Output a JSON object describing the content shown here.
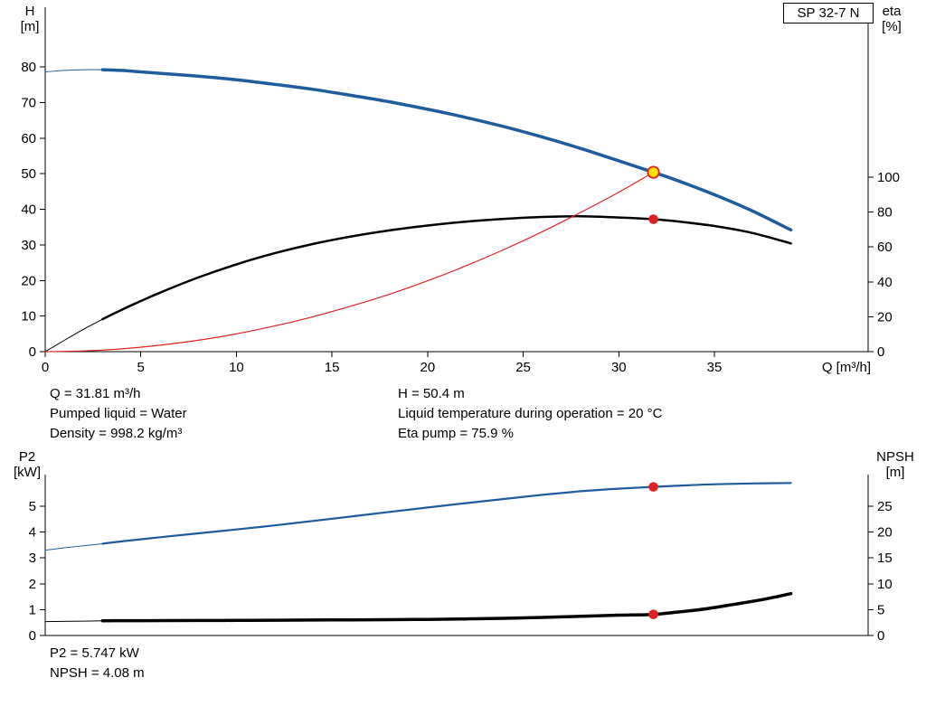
{
  "colors": {
    "blue": "#1E5C9E",
    "black": "#000000",
    "red": "#E02121",
    "duty_yellow": "#FFE000",
    "axis": "#000000",
    "background": "#FFFFFF"
  },
  "info_rows_top": [
    [
      "Q = 31.81 m³/h",
      "H = 50.4 m"
    ],
    [
      "Pumped liquid = Water",
      "Liquid temperature during operation = 20 °C"
    ],
    [
      "Density = 998.2 kg/m³",
      "Eta pump = 75.9 %"
    ]
  ],
  "info_rows_bottom": [
    "P2 = 5.747 kW",
    "NPSH = 4.08 m"
  ],
  "chart_data": [
    {
      "id": "head-efficiency-chart",
      "type": "line",
      "title": "SP 32-7 N",
      "x_axis": {
        "label": "Q [m³/h]",
        "min": 0,
        "max": 43,
        "ticks": [
          0,
          5,
          10,
          15,
          20,
          25,
          30,
          35
        ]
      },
      "y_left": {
        "label": "H [m]",
        "label_lines": [
          "H",
          "[m]"
        ],
        "min": 0,
        "max": 96,
        "ticks": [
          0,
          10,
          20,
          30,
          40,
          50,
          60,
          70,
          80
        ]
      },
      "y_right": {
        "label": "eta [%]",
        "label_lines": [
          "eta",
          "[%]"
        ],
        "min": 0,
        "max": 197,
        "ticks": [
          0,
          20,
          40,
          60,
          80,
          100
        ]
      },
      "legend": "none",
      "grid": false,
      "series": [
        {
          "name": "head-curve-low-flow",
          "axis": "left",
          "color": "blue",
          "width": 1,
          "points": [
            [
              0,
              78.6
            ],
            [
              1,
              79.0
            ],
            [
              2,
              79.2
            ],
            [
              3,
              79.2
            ]
          ]
        },
        {
          "name": "head-curve",
          "axis": "left",
          "color": "blue",
          "width": 3.5,
          "points": [
            [
              3,
              79.2
            ],
            [
              4,
              79.0
            ],
            [
              5,
              78.6
            ],
            [
              6,
              78.2
            ],
            [
              8,
              77.4
            ],
            [
              10,
              76.4
            ],
            [
              12,
              75.1
            ],
            [
              14,
              73.7
            ],
            [
              16,
              72.0
            ],
            [
              18,
              70.2
            ],
            [
              20,
              68.1
            ],
            [
              22,
              65.8
            ],
            [
              24,
              63.2
            ],
            [
              26,
              60.3
            ],
            [
              28,
              57.1
            ],
            [
              30,
              53.6
            ],
            [
              31.81,
              50.4
            ],
            [
              33,
              48.2
            ],
            [
              35,
              44.1
            ],
            [
              37,
              39.5
            ],
            [
              39,
              34.2
            ]
          ]
        },
        {
          "name": "efficiency-curve-low-flow",
          "axis": "right",
          "color": "black",
          "width": 1,
          "points": [
            [
              0,
              0
            ],
            [
              1,
              6.5
            ],
            [
              2,
              12.8
            ],
            [
              3,
              18.6
            ]
          ]
        },
        {
          "name": "efficiency-curve",
          "axis": "right",
          "color": "black",
          "width": 2.5,
          "points": [
            [
              3,
              18.6
            ],
            [
              4,
              24.0
            ],
            [
              5,
              29.0
            ],
            [
              6,
              33.8
            ],
            [
              8,
              42.5
            ],
            [
              10,
              50.0
            ],
            [
              12,
              56.4
            ],
            [
              14,
              61.7
            ],
            [
              16,
              66.0
            ],
            [
              18,
              69.5
            ],
            [
              20,
              72.3
            ],
            [
              22,
              74.5
            ],
            [
              24,
              76.1
            ],
            [
              26,
              77.2
            ],
            [
              28,
              77.6
            ],
            [
              30,
              76.9
            ],
            [
              31.81,
              75.9
            ],
            [
              33,
              74.7
            ],
            [
              35,
              72.0
            ],
            [
              37,
              68.0
            ],
            [
              39,
              62.0
            ]
          ]
        },
        {
          "name": "system-curve",
          "axis": "left",
          "color": "red",
          "width": 1.2,
          "points": [
            [
              0,
              0
            ],
            [
              2,
              0.2
            ],
            [
              4,
              0.8
            ],
            [
              6,
              1.8
            ],
            [
              8,
              3.2
            ],
            [
              10,
              5.0
            ],
            [
              12,
              7.2
            ],
            [
              14,
              9.8
            ],
            [
              16,
              12.8
            ],
            [
              18,
              16.1
            ],
            [
              20,
              19.9
            ],
            [
              22,
              24.1
            ],
            [
              24,
              28.7
            ],
            [
              26,
              33.7
            ],
            [
              28,
              39.1
            ],
            [
              30,
              44.8
            ],
            [
              31.81,
              50.4
            ]
          ]
        }
      ],
      "markers": [
        {
          "name": "duty-point",
          "axis": "left",
          "q": 31.81,
          "value": 50.4,
          "style": "duty"
        },
        {
          "name": "efficiency-point",
          "axis": "right",
          "q": 31.81,
          "value": 75.9,
          "style": "dot"
        }
      ]
    },
    {
      "id": "power-npsh-chart",
      "type": "line",
      "title": "",
      "x_axis": {
        "label": "",
        "min": 0,
        "max": 43,
        "ticks": []
      },
      "y_left": {
        "label": "P2 [kW]",
        "label_lines": [
          "P2",
          "[kW]"
        ],
        "min": 0,
        "max": 6.2,
        "ticks": [
          0,
          1,
          2,
          3,
          4,
          5
        ]
      },
      "y_right": {
        "label": "NPSH [m]",
        "label_lines": [
          "NPSH",
          "[m]"
        ],
        "min": 0,
        "max": 31,
        "ticks": [
          0,
          5,
          10,
          15,
          20,
          25
        ]
      },
      "legend": "none",
      "grid": false,
      "series": [
        {
          "name": "p2-curve-low-flow",
          "axis": "left",
          "color": "blue",
          "width": 1,
          "points": [
            [
              0,
              3.3
            ],
            [
              1,
              3.39
            ],
            [
              2,
              3.47
            ],
            [
              3,
              3.55
            ]
          ]
        },
        {
          "name": "p2-curve",
          "axis": "left",
          "color": "blue",
          "width": 2.2,
          "points": [
            [
              3,
              3.55
            ],
            [
              4,
              3.64
            ],
            [
              5,
              3.72
            ],
            [
              6,
              3.8
            ],
            [
              8,
              3.95
            ],
            [
              10,
              4.1
            ],
            [
              12,
              4.26
            ],
            [
              14,
              4.43
            ],
            [
              16,
              4.6
            ],
            [
              18,
              4.78
            ],
            [
              20,
              4.95
            ],
            [
              22,
              5.12
            ],
            [
              24,
              5.28
            ],
            [
              26,
              5.44
            ],
            [
              28,
              5.58
            ],
            [
              30,
              5.68
            ],
            [
              31.81,
              5.747
            ],
            [
              33,
              5.79
            ],
            [
              35,
              5.85
            ],
            [
              37,
              5.88
            ],
            [
              39,
              5.9
            ]
          ]
        },
        {
          "name": "npsh-curve-low-flow",
          "axis": "right",
          "color": "black",
          "width": 1,
          "points": [
            [
              0,
              2.7
            ],
            [
              1.5,
              2.75
            ],
            [
              3,
              2.85
            ]
          ]
        },
        {
          "name": "npsh-curve",
          "axis": "right",
          "color": "black",
          "width": 3.5,
          "points": [
            [
              3,
              2.85
            ],
            [
              5,
              2.87
            ],
            [
              8,
              2.9
            ],
            [
              10,
              2.92
            ],
            [
              12,
              2.95
            ],
            [
              15,
              3.0
            ],
            [
              18,
              3.06
            ],
            [
              20,
              3.12
            ],
            [
              22,
              3.2
            ],
            [
              24,
              3.32
            ],
            [
              26,
              3.5
            ],
            [
              28,
              3.7
            ],
            [
              30,
              3.93
            ],
            [
              31.81,
              4.08
            ],
            [
              33,
              4.5
            ],
            [
              34,
              4.9
            ],
            [
              35,
              5.4
            ],
            [
              36,
              6.0
            ],
            [
              37,
              6.6
            ],
            [
              38,
              7.3
            ],
            [
              39,
              8.1
            ]
          ]
        }
      ],
      "markers": [
        {
          "name": "p2-point",
          "axis": "left",
          "q": 31.81,
          "value": 5.747,
          "style": "dot"
        },
        {
          "name": "npsh-point",
          "axis": "right",
          "q": 31.81,
          "value": 4.08,
          "style": "dot"
        }
      ]
    }
  ]
}
